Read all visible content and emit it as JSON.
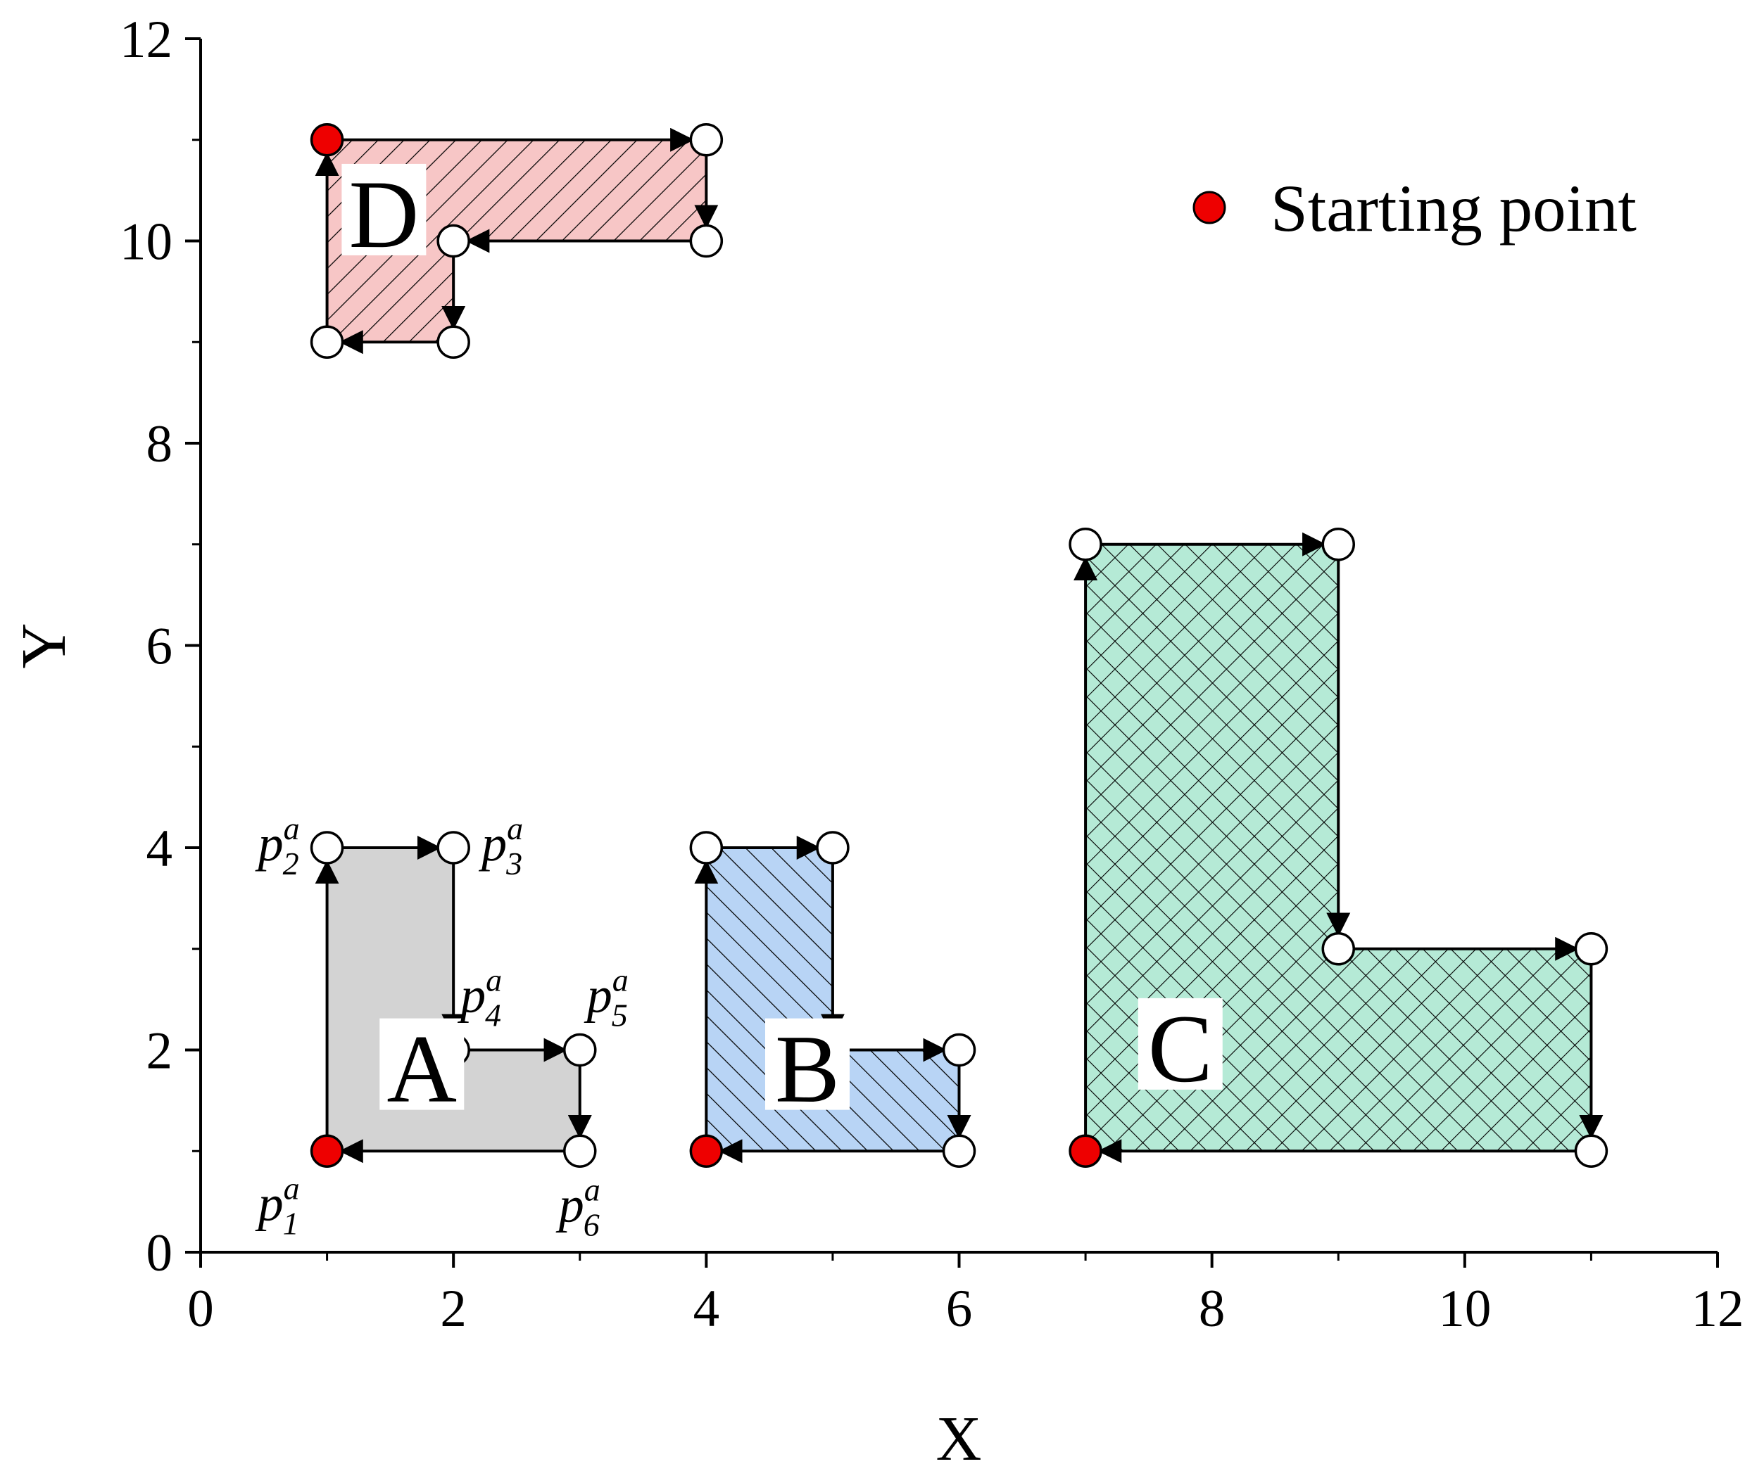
{
  "chart_data": {
    "type": "scatter",
    "xlabel": "X",
    "ylabel": "Y",
    "xlim": [
      0,
      12
    ],
    "ylim": [
      0,
      12
    ],
    "xticks": [
      0,
      2,
      4,
      6,
      8,
      10,
      12
    ],
    "yticks": [
      0,
      2,
      4,
      6,
      8,
      10,
      12
    ],
    "grid": false,
    "legend": {
      "label": "Starting point",
      "placement": "top-right",
      "color": "#ee0000"
    },
    "polygons": [
      {
        "label": "A",
        "fill": "#d3d3d3",
        "hatch": "none",
        "vertices": [
          [
            1,
            1
          ],
          [
            1,
            4
          ],
          [
            2,
            4
          ],
          [
            2,
            2
          ],
          [
            3,
            2
          ],
          [
            3,
            1
          ]
        ],
        "vertex_labels": [
          {
            "base": "p",
            "sub": "1",
            "sup": "a"
          },
          {
            "base": "p",
            "sub": "2",
            "sup": "a"
          },
          {
            "base": "p",
            "sub": "3",
            "sup": "a"
          },
          {
            "base": "p",
            "sub": "4",
            "sup": "a"
          },
          {
            "base": "p",
            "sub": "5",
            "sup": "a"
          },
          {
            "base": "p",
            "sub": "6",
            "sup": "a"
          }
        ]
      },
      {
        "label": "B",
        "fill": "#b8d4f5",
        "hatch": "backslash",
        "vertices": [
          [
            4,
            1
          ],
          [
            4,
            4
          ],
          [
            5,
            4
          ],
          [
            5,
            2
          ],
          [
            6,
            2
          ],
          [
            6,
            1
          ]
        ]
      },
      {
        "label": "C",
        "fill": "#b5ead6",
        "hatch": "cross",
        "vertices": [
          [
            7,
            1
          ],
          [
            7,
            7
          ],
          [
            9,
            7
          ],
          [
            9,
            3
          ],
          [
            11,
            3
          ],
          [
            11,
            1
          ]
        ]
      },
      {
        "label": "D",
        "fill": "#f7c6c6",
        "hatch": "slash",
        "vertices": [
          [
            1,
            11
          ],
          [
            4,
            11
          ],
          [
            4,
            10
          ],
          [
            2,
            10
          ],
          [
            2,
            9
          ],
          [
            1,
            9
          ]
        ]
      }
    ]
  }
}
